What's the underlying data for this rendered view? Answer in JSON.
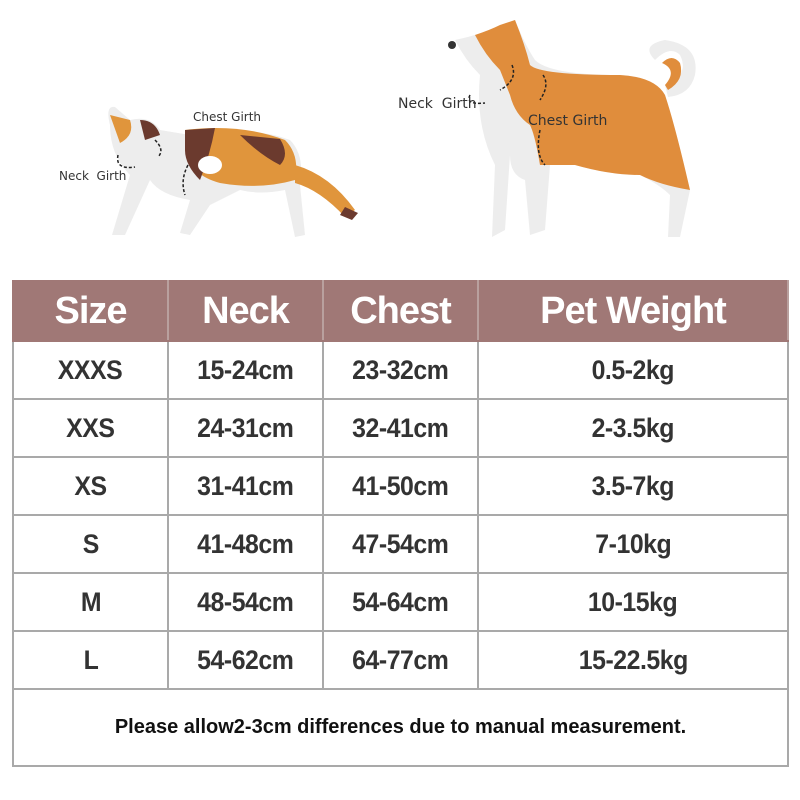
{
  "illustrations": {
    "cat": {
      "neck_label": "Neck  Girth",
      "chest_label": "Chest Girth"
    },
    "dog": {
      "neck_label": "Neck  Girth",
      "chest_label": "Chest Girth"
    }
  },
  "colors": {
    "header": "#a07876",
    "dog_body": "#e08d3c",
    "cat_orange": "#e0953c",
    "cat_brown": "#6b3a2e"
  },
  "table": {
    "headers": [
      "Size",
      "Neck",
      "Chest",
      "Pet Weight"
    ],
    "rows": [
      [
        "XXXS",
        "15-24cm",
        "23-32cm",
        "0.5-2kg"
      ],
      [
        "XXS",
        "24-31cm",
        "32-41cm",
        "2-3.5kg"
      ],
      [
        "XS",
        "31-41cm",
        "41-50cm",
        "3.5-7kg"
      ],
      [
        "S",
        "41-48cm",
        "47-54cm",
        "7-10kg"
      ],
      [
        "M",
        "48-54cm",
        "54-64cm",
        "10-15kg"
      ],
      [
        "L",
        "54-62cm",
        "64-77cm",
        "15-22.5kg"
      ]
    ],
    "note": "Please allow2-3cm differences due to manual measurement."
  }
}
